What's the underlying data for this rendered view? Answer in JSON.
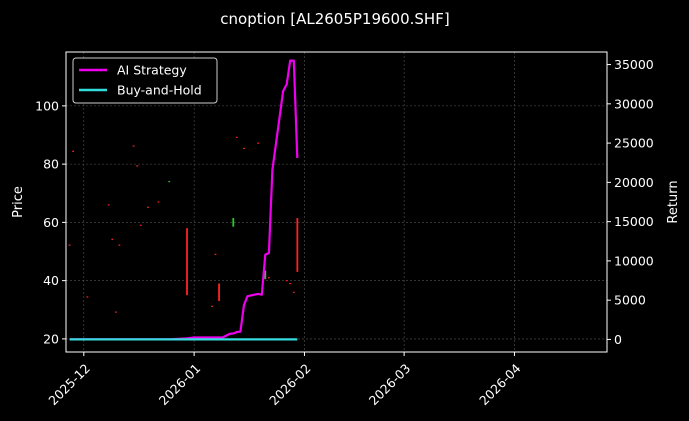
{
  "chart_data": {
    "type": "line",
    "title": "cnoption [AL2605P19600.SHF]",
    "ylabel": "Price",
    "y2label": "Return",
    "xlim": [
      "2025-11-26",
      "2026-04-27"
    ],
    "ylim": [
      15.5,
      118.5
    ],
    "y2lim": [
      -1600,
      36600
    ],
    "x_ticks": [
      "2025-12",
      "2026-01",
      "2026-02",
      "2026-03",
      "2026-04"
    ],
    "y_ticks": [
      20,
      40,
      60,
      80,
      100
    ],
    "y2_ticks": [
      0,
      5000,
      10000,
      15000,
      20000,
      25000,
      30000,
      35000
    ],
    "grid": true,
    "legend": "top-left",
    "series": [
      {
        "name": "AI Strategy",
        "axis": "right",
        "color": "#ee00ee",
        "x": [
          "2025-11-27",
          "2025-12-05",
          "2025-12-15",
          "2025-12-25",
          "2025-12-30",
          "2026-01-01",
          "2026-01-04",
          "2026-01-07",
          "2026-01-09",
          "2026-01-11",
          "2026-01-12",
          "2026-01-13",
          "2026-01-14",
          "2026-01-15",
          "2026-01-16",
          "2026-01-19",
          "2026-01-20",
          "2026-01-21",
          "2026-01-22",
          "2026-01-23",
          "2026-01-26",
          "2026-01-27",
          "2026-01-28",
          "2026-01-29",
          "2026-01-30"
        ],
        "values": [
          0,
          0,
          0,
          0,
          150,
          250,
          250,
          250,
          250,
          700,
          750,
          950,
          1000,
          4400,
          5500,
          5800,
          5700,
          10800,
          11000,
          21600,
          31600,
          32500,
          35500,
          35500,
          23100
        ]
      },
      {
        "name": "Buy-and-Hold",
        "axis": "right",
        "color": "#33dddd",
        "x": [
          "2025-11-27",
          "2026-01-30"
        ],
        "values": [
          0,
          0
        ]
      }
    ],
    "candles": [
      {
        "date": "2025-11-27",
        "low": 52.0,
        "high": 52.4,
        "color": "#ff2222"
      },
      {
        "date": "2025-11-28",
        "low": 84.2,
        "high": 84.6,
        "color": "#ff2222"
      },
      {
        "date": "2025-12-02",
        "low": 34.2,
        "high": 34.6,
        "color": "#ff2222"
      },
      {
        "date": "2025-12-08",
        "low": 65.8,
        "high": 66.2,
        "color": "#ff2222"
      },
      {
        "date": "2025-12-09",
        "low": 54.0,
        "high": 54.4,
        "color": "#ff2222"
      },
      {
        "date": "2025-12-10",
        "low": 29.0,
        "high": 29.4,
        "color": "#ff2222"
      },
      {
        "date": "2025-12-11",
        "low": 52.0,
        "high": 52.4,
        "color": "#ff2222"
      },
      {
        "date": "2025-12-15",
        "low": 86.0,
        "high": 86.4,
        "color": "#ff2222"
      },
      {
        "date": "2025-12-16",
        "low": 79.2,
        "high": 79.6,
        "color": "#ff2222"
      },
      {
        "date": "2025-12-17",
        "low": 58.8,
        "high": 59.2,
        "color": "#ff2222"
      },
      {
        "date": "2025-12-19",
        "low": 65.0,
        "high": 65.4,
        "color": "#ff2222"
      },
      {
        "date": "2025-12-22",
        "low": 66.8,
        "high": 67.2,
        "color": "#ff2222"
      },
      {
        "date": "2025-12-25",
        "low": 73.8,
        "high": 74.2,
        "color": "#22cc22"
      },
      {
        "date": "2025-12-30",
        "low": 35.0,
        "high": 58.0,
        "color": "#ff2222"
      },
      {
        "date": "2026-01-06",
        "low": 31.0,
        "high": 31.4,
        "color": "#ff2222"
      },
      {
        "date": "2026-01-07",
        "low": 48.8,
        "high": 49.2,
        "color": "#ff2222"
      },
      {
        "date": "2026-01-08",
        "low": 33.0,
        "high": 39.0,
        "color": "#ff2222"
      },
      {
        "date": "2026-01-12",
        "low": 58.5,
        "high": 61.5,
        "color": "#22cc22"
      },
      {
        "date": "2026-01-13",
        "low": 89.0,
        "high": 89.4,
        "color": "#ff2222"
      },
      {
        "date": "2026-01-15",
        "low": 85.2,
        "high": 85.6,
        "color": "#ff2222"
      },
      {
        "date": "2026-01-19",
        "low": 87.0,
        "high": 87.4,
        "color": "#ff2222"
      },
      {
        "date": "2026-01-21",
        "low": 40.5,
        "high": 43.5,
        "color": "#22cc22"
      },
      {
        "date": "2026-01-22",
        "low": 40.8,
        "high": 41.2,
        "color": "#ff2222"
      },
      {
        "date": "2026-01-27",
        "low": 39.8,
        "high": 40.2,
        "color": "#ff2222"
      },
      {
        "date": "2026-01-28",
        "low": 38.8,
        "high": 39.2,
        "color": "#ff2222"
      },
      {
        "date": "2026-01-29",
        "low": 35.8,
        "high": 36.2,
        "color": "#ff2222"
      },
      {
        "date": "2026-01-30",
        "low": 43.0,
        "high": 61.5,
        "color": "#ff2222"
      }
    ]
  }
}
